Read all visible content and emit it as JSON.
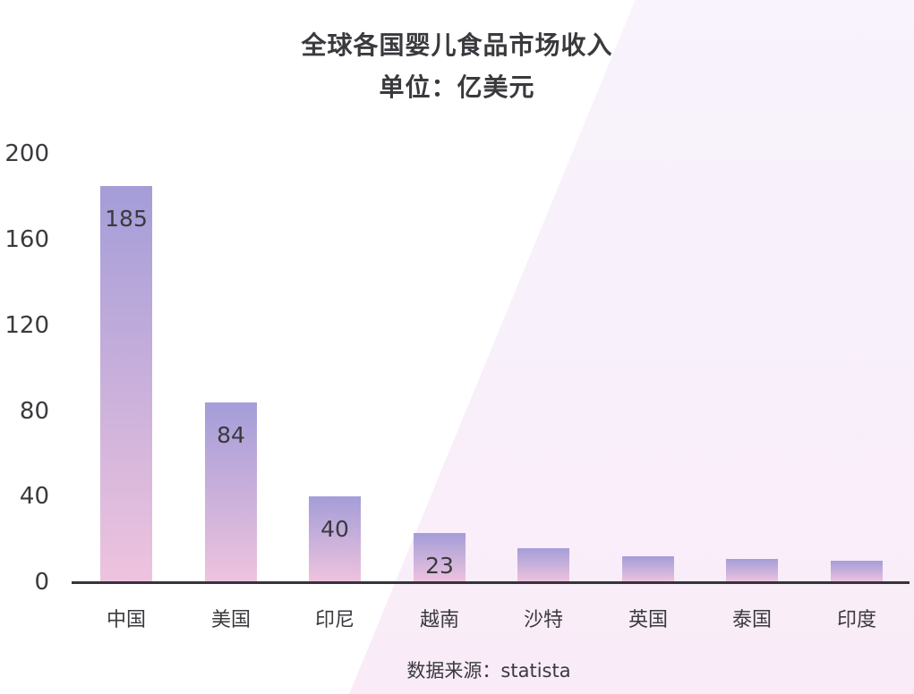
{
  "colors": {
    "background": "#ffffff",
    "wedge_top": "#f8f3fc",
    "wedge_bottom": "#f9ecf8",
    "bar_gradient_top": "#a49dd8",
    "bar_gradient_bottom": "#eec3de",
    "text": "#3a3a3e",
    "axis_line": "#38333c"
  },
  "title": {
    "line1": "全球各国婴儿食品市场收入",
    "line2": "单位：亿美元"
  },
  "footer": {
    "source": "数据来源：statista"
  },
  "chart_data": {
    "type": "bar",
    "title": "全球各国婴儿食品市场收入",
    "subtitle": "单位：亿美元",
    "unit": "亿美元",
    "categories": [
      "中国",
      "美国",
      "印尼",
      "越南",
      "沙特",
      "英国",
      "泰国",
      "印度"
    ],
    "values": [
      185,
      84,
      40,
      23,
      16,
      12,
      11,
      10
    ],
    "value_labels_shown": [
      "185",
      "84",
      "40",
      "23",
      "",
      "",
      "",
      ""
    ],
    "yticks": [
      200,
      160,
      120,
      80,
      40,
      0
    ],
    "ylim": [
      0,
      200
    ],
    "grid": false,
    "legend": null,
    "bar_orientation": "vertical",
    "source_note": "数据来源：statista"
  }
}
